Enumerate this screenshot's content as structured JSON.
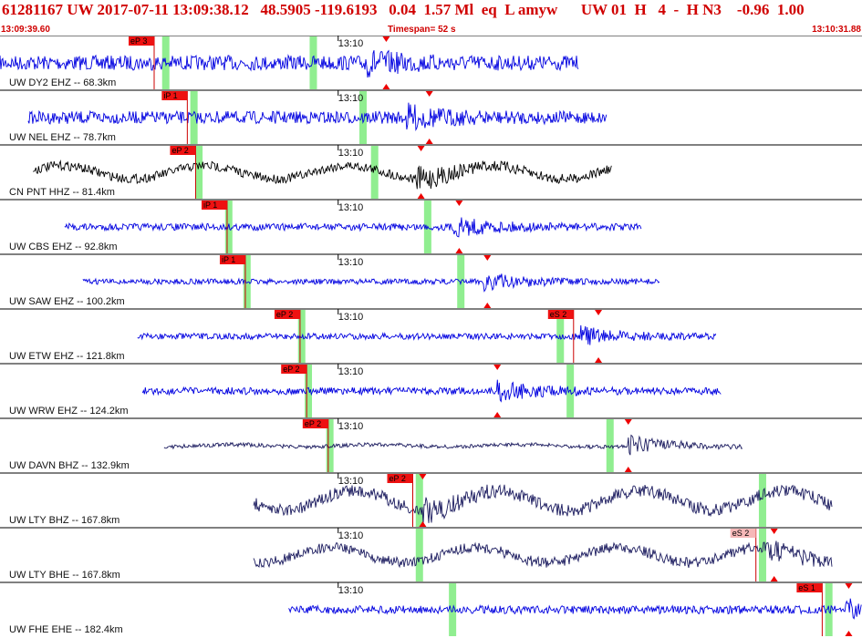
{
  "header": {
    "event_line": "61281167 UW 2017-07-11 13:09:38.12   48.5905 -119.6193   0.04  1.57 Ml  eq  L amyw      UW 01  H   4  -  H N3    -0.96  1.00",
    "time_left": "13:09:39.60",
    "timespan": "Timespan=  52 s",
    "time_right": "13:10:31.88"
  },
  "colors": {
    "header_text": "#d00000",
    "trace_blue": "#0000e0",
    "trace_black": "#000000",
    "trace_navy": "#1a1a5e",
    "pick_box": "#ee1111",
    "pick_box_light": "#f6b8b8",
    "green_band": "#90ee90",
    "pick_line": "#cc0000",
    "marker": "#ee0000"
  },
  "chart_data": {
    "type": "line",
    "title": "",
    "xlabel": "",
    "ylabel": "",
    "x_range_s": [
      0,
      52
    ],
    "time_tick_label": "13:10",
    "time_tick_s": 20.4,
    "traces": [
      {
        "label": "UW DY2 EHZ -- 68.3km",
        "style": "blue",
        "start_s": 0.0,
        "end_s": 34.9,
        "amp": 0.22,
        "picks": [
          {
            "label": "eP 3",
            "t": 9.3,
            "light": false
          }
        ],
        "bands_s": [
          10.0,
          18.9
        ],
        "burst_s": 22.0,
        "peak_s": 23.3
      },
      {
        "label": "UW NEL EHZ -- 78.7km",
        "style": "blue",
        "start_s": 1.7,
        "end_s": 36.6,
        "amp": 0.18,
        "picks": [
          {
            "label": "iP 1",
            "t": 11.3,
            "light": false
          }
        ],
        "bands_s": [
          11.7,
          21.9
        ],
        "burst_s": 24.5,
        "peak_s": 25.9
      },
      {
        "label": "CN PNT HHZ -- 81.4km",
        "style": "black",
        "start_s": 2.0,
        "end_s": 36.9,
        "amp": 0.12,
        "picks": [
          {
            "label": "eP 2",
            "t": 11.8,
            "light": false
          }
        ],
        "bands_s": [
          12.0,
          22.6
        ],
        "burst_s": 25.1,
        "peak_s": 25.4
      },
      {
        "label": "UW CBS EHZ -- 92.8km",
        "style": "blue",
        "start_s": 3.9,
        "end_s": 38.7,
        "amp": 0.08,
        "picks": [
          {
            "label": "iP 1",
            "t": 13.7,
            "light": false
          }
        ],
        "bands_s": [
          13.8,
          25.8
        ],
        "burst_s": 27.3,
        "peak_s": 27.7
      },
      {
        "label": "UW SAW EHZ -- 100.2km",
        "style": "blue",
        "start_s": 5.0,
        "end_s": 39.8,
        "amp": 0.05,
        "picks": [
          {
            "label": "iP 1",
            "t": 14.8,
            "light": false
          }
        ],
        "bands_s": [
          14.9,
          27.8
        ],
        "burst_s": 29.2,
        "peak_s": 29.4
      },
      {
        "label": "UW ETW EHZ -- 121.8km",
        "style": "blue",
        "start_s": 8.3,
        "end_s": 43.2,
        "amp": 0.06,
        "picks": [
          {
            "label": "eP 2",
            "t": 18.1,
            "light": false
          },
          {
            "label": "eS 2",
            "t": 34.6,
            "light": false
          }
        ],
        "bands_s": [
          18.2,
          33.8
        ],
        "burst_s": 35.0,
        "peak_s": 36.1
      },
      {
        "label": "UW WRW EHZ -- 124.2km",
        "style": "blue",
        "start_s": 8.6,
        "end_s": 43.5,
        "amp": 0.08,
        "picks": [
          {
            "label": "eP 2",
            "t": 18.5,
            "light": false
          }
        ],
        "bands_s": [
          18.6,
          34.4
        ],
        "burst_s": 30.0,
        "peak_s": 30.0
      },
      {
        "label": "UW DAVN BHZ -- 132.9km",
        "style": "navy",
        "start_s": 9.9,
        "end_s": 44.8,
        "amp": 0.02,
        "picks": [
          {
            "label": "eP 2",
            "t": 19.8,
            "light": false
          }
        ],
        "bands_s": [
          19.9,
          36.8
        ],
        "burst_s": 37.9,
        "peak_s": 37.9
      },
      {
        "label": "UW LTY BHZ -- 167.8km",
        "style": "navy",
        "start_s": 15.3,
        "end_s": 50.2,
        "amp": 0.18,
        "picks": [
          {
            "label": "eP 2",
            "t": 24.9,
            "light": false
          }
        ],
        "bands_s": [
          25.3,
          46.0
        ],
        "burst_s": 25.5,
        "peak_s": 25.5
      },
      {
        "label": "UW LTY BHE -- 167.8km",
        "style": "navy",
        "start_s": 15.3,
        "end_s": 50.2,
        "amp": 0.14,
        "picks": [
          {
            "label": "eS 2",
            "t": 45.6,
            "light": true
          }
        ],
        "bands_s": [
          25.3,
          46.0
        ],
        "burst_s": 46.4,
        "peak_s": 46.7
      },
      {
        "label": "UW FHE EHE -- 182.4km",
        "style": "blue",
        "start_s": 17.4,
        "end_s": 52.0,
        "amp": 0.1,
        "picks": [
          {
            "label": "eS 1",
            "t": 49.6,
            "light": false
          }
        ],
        "bands_s": [
          27.3,
          50.0
        ],
        "burst_s": 51.0,
        "peak_s": 51.2
      }
    ]
  }
}
